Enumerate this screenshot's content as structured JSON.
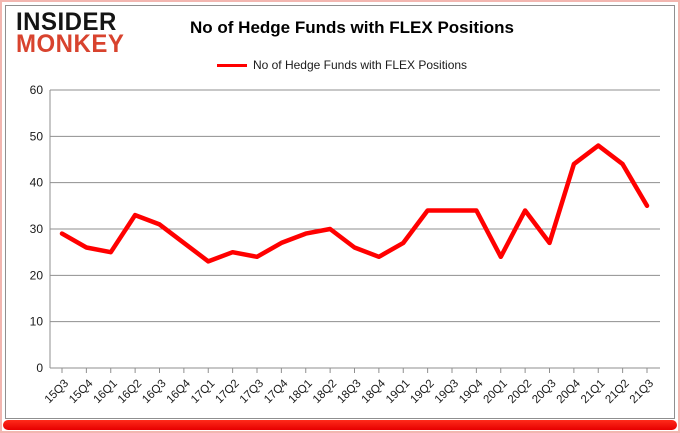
{
  "branding": {
    "logo_line1": "INSIDER",
    "logo_line2": "MONKEY",
    "logo_color_primary": "#141414",
    "logo_color_secondary": "#d8432e"
  },
  "header": {
    "title": "No of Hedge Funds with FLEX Positions"
  },
  "legend": {
    "label": "No of Hedge Funds with FLEX Positions",
    "line_color": "#ff0000",
    "position": "top-center"
  },
  "chart_data": {
    "type": "line",
    "title": "No of Hedge Funds with FLEX Positions",
    "categories": [
      "15Q3",
      "15Q4",
      "16Q1",
      "16Q2",
      "16Q3",
      "16Q4",
      "17Q1",
      "17Q2",
      "17Q3",
      "17Q4",
      "18Q1",
      "18Q2",
      "18Q3",
      "18Q4",
      "19Q1",
      "19Q2",
      "19Q3",
      "19Q4",
      "20Q1",
      "20Q2",
      "20Q3",
      "20Q4",
      "21Q1",
      "21Q2",
      "21Q3"
    ],
    "series": [
      {
        "name": "No of Hedge Funds with FLEX Positions",
        "color": "#ff0000",
        "values": [
          29,
          26,
          25,
          33,
          31,
          27,
          23,
          25,
          24,
          27,
          29,
          30,
          26,
          24,
          27,
          34,
          34,
          34,
          24,
          34,
          27,
          44,
          48,
          44,
          35
        ]
      }
    ],
    "xlabel": "",
    "ylabel": "",
    "ylim": [
      0,
      60
    ],
    "ytick_step": 10,
    "grid": "horizontal-only",
    "legend_position": "top-center"
  },
  "colors": {
    "grid_line": "#8f8f8f",
    "axis_line": "#8f8f8f",
    "tick_label": "#1a1a1a",
    "bottom_bar": "#f00000",
    "outer_border": "#f2b6b0"
  }
}
